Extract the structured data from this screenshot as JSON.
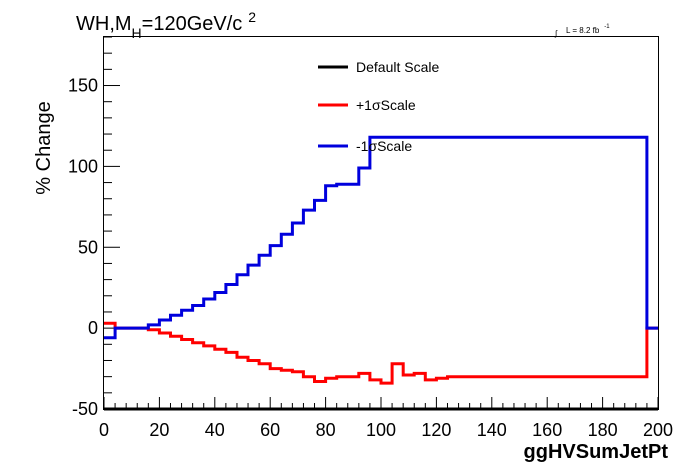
{
  "chart_data": {
    "type": "line",
    "title": "WH,M",
    "title_sub": "H",
    "title_rest": "=120GeV/c",
    "title_sup": "2",
    "lumi_text": "L = 8.2 fb",
    "lumi_sup": "-1",
    "lumi_integral": "∫",
    "xlabel": "ggHVSumJetPt",
    "ylabel": "% Change",
    "xlim": [
      0,
      200
    ],
    "ylim": [
      -50,
      180
    ],
    "xticks": [
      0,
      20,
      40,
      60,
      80,
      100,
      120,
      140,
      160,
      180,
      200
    ],
    "yticks": [
      -50,
      0,
      50,
      100,
      150
    ],
    "bin_width": 4,
    "series": [
      {
        "name": "Default Scale",
        "color": "#000000",
        "values": [
          -50,
          -50,
          -50,
          -50,
          -50,
          -50,
          -50,
          -50,
          -50,
          -50,
          -50,
          -50,
          -50,
          -50,
          -50,
          -50,
          -50,
          -50,
          -50,
          -50,
          -50,
          -50,
          -50,
          -50,
          -50,
          -50,
          -50,
          -50,
          -50,
          -50,
          -50,
          -50,
          -50,
          -50,
          -50,
          -50,
          -50,
          -50,
          -50,
          -50,
          -50,
          -50,
          -50,
          -50,
          -50,
          -50,
          -50,
          -50,
          -50,
          -50
        ]
      },
      {
        "name": "+1σScale",
        "color": "#ff0000",
        "values": [
          3,
          0,
          0,
          0,
          -1,
          -3,
          -5,
          -7,
          -9,
          -11,
          -13,
          -15,
          -18,
          -20,
          -22,
          -25,
          -26,
          -27,
          -30,
          -33,
          -31,
          -30,
          -30,
          -28,
          -32,
          -34,
          -22,
          -29,
          -28,
          -32,
          -31,
          -30,
          -30,
          -30,
          -30,
          -30,
          -30,
          -30,
          -30,
          -30,
          -30,
          -30,
          -30,
          -30,
          -30,
          -30,
          -30,
          -30,
          -30,
          0
        ]
      },
      {
        "name": "-1σScale",
        "color": "#0000dd",
        "values": [
          -6,
          0,
          0,
          0,
          2,
          5,
          8,
          11,
          14,
          18,
          22,
          27,
          33,
          39,
          45,
          51,
          58,
          65,
          73,
          79,
          88,
          89,
          89,
          99,
          118,
          118,
          118,
          118,
          118,
          118,
          118,
          118,
          118,
          118,
          118,
          118,
          118,
          118,
          118,
          118,
          118,
          118,
          118,
          118,
          118,
          118,
          118,
          118,
          118,
          0
        ]
      }
    ],
    "legend_placement": "top-center",
    "grid": false,
    "colors": {
      "default": "#000000",
      "plus": "#ff0000",
      "minus": "#0000dd"
    }
  }
}
